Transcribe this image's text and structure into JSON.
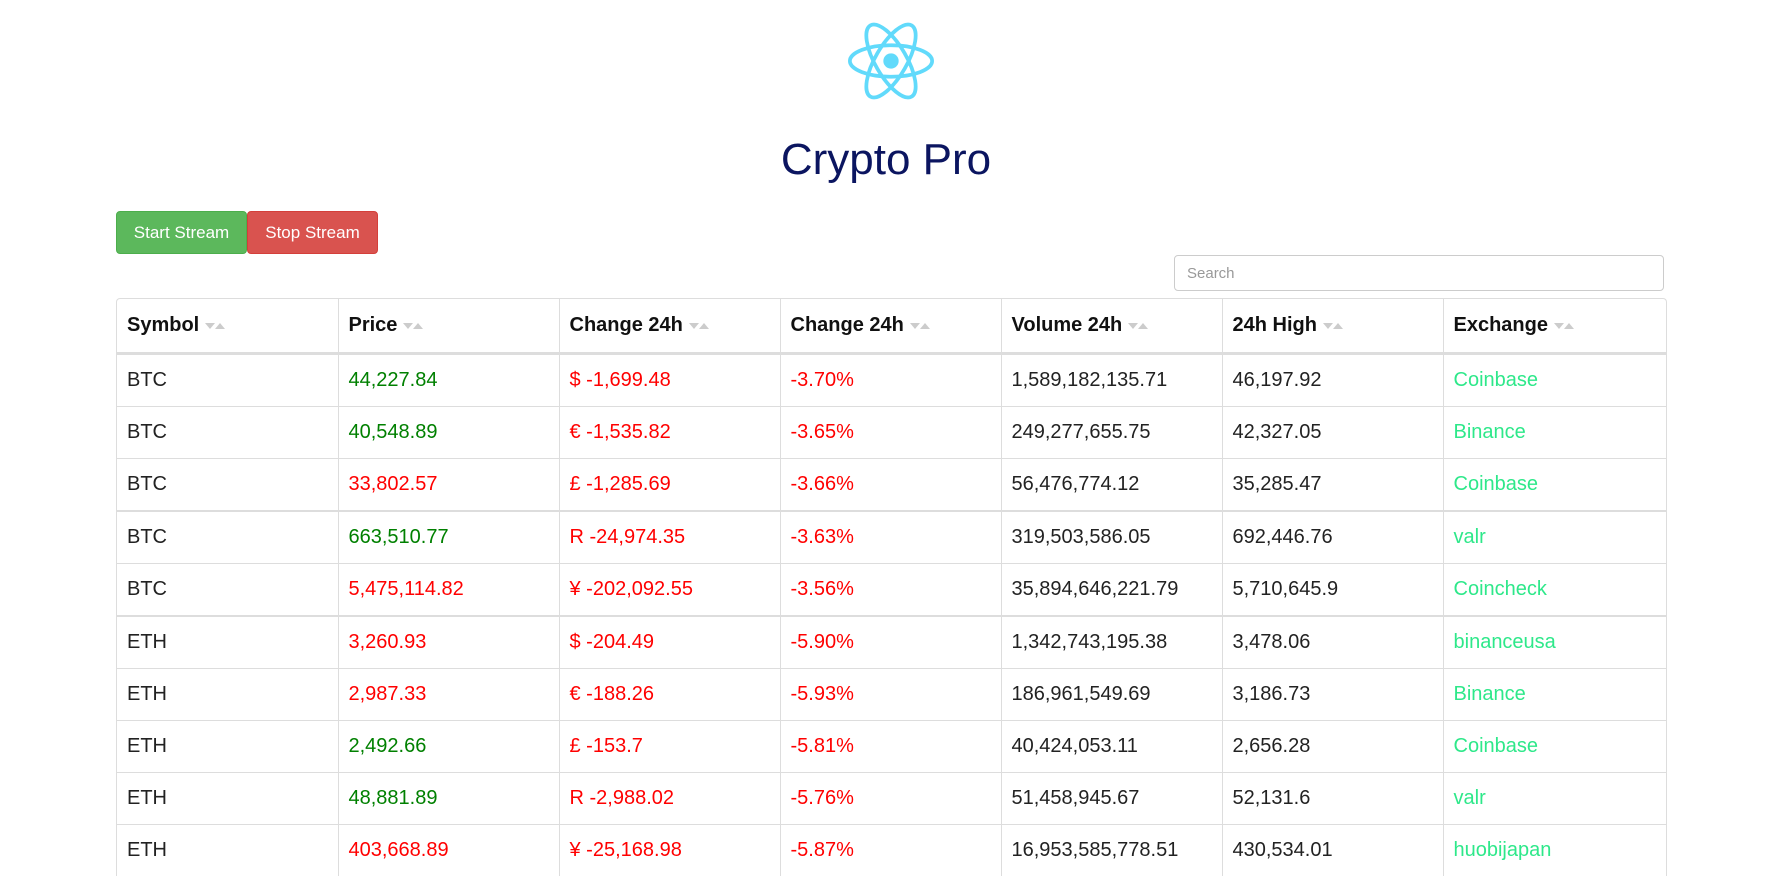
{
  "app": {
    "title": "Crypto Pro",
    "logo_icon": "react-atom-icon",
    "logo_color": "#61dafb"
  },
  "controls": {
    "start_label": "Start Stream",
    "stop_label": "Stop Stream",
    "search_placeholder": "Search"
  },
  "colors": {
    "up": "#008000",
    "down": "#ff0000",
    "exchange": "#2ee88a",
    "title": "#0b1560"
  },
  "table": {
    "columns": [
      "Symbol",
      "Price",
      "Change 24h",
      "Change 24h",
      "Volume 24h",
      "24h High",
      "Exchange"
    ],
    "rows": [
      {
        "symbol": "BTC",
        "price": "44,227.84",
        "price_dir": "up",
        "change": "$ -1,699.48",
        "change_pct": "-3.70%",
        "volume": "1,589,182,135.71",
        "high": "46,197.92",
        "exchange": "Coinbase"
      },
      {
        "symbol": "BTC",
        "price": "40,548.89",
        "price_dir": "up",
        "change": "€ -1,535.82",
        "change_pct": "-3.65%",
        "volume": "249,277,655.75",
        "high": "42,327.05",
        "exchange": "Binance"
      },
      {
        "symbol": "BTC",
        "price": "33,802.57",
        "price_dir": "down",
        "change": "£ -1,285.69",
        "change_pct": "-3.66%",
        "volume": "56,476,774.12",
        "high": "35,285.47",
        "exchange": "Coinbase"
      },
      {
        "symbol": "BTC",
        "price": "663,510.77",
        "price_dir": "up",
        "change": "R -24,974.35",
        "change_pct": "-3.63%",
        "volume": "319,503,586.05",
        "high": "692,446.76",
        "exchange": "valr"
      },
      {
        "symbol": "BTC",
        "price": "5,475,114.82",
        "price_dir": "down",
        "change": "¥ -202,092.55",
        "change_pct": "-3.56%",
        "volume": "35,894,646,221.79",
        "high": "5,710,645.9",
        "exchange": "Coincheck"
      },
      {
        "symbol": "ETH",
        "price": "3,260.93",
        "price_dir": "down",
        "change": "$ -204.49",
        "change_pct": "-5.90%",
        "volume": "1,342,743,195.38",
        "high": "3,478.06",
        "exchange": "binanceusa"
      },
      {
        "symbol": "ETH",
        "price": "2,987.33",
        "price_dir": "down",
        "change": "€ -188.26",
        "change_pct": "-5.93%",
        "volume": "186,961,549.69",
        "high": "3,186.73",
        "exchange": "Binance"
      },
      {
        "symbol": "ETH",
        "price": "2,492.66",
        "price_dir": "up",
        "change": "£ -153.7",
        "change_pct": "-5.81%",
        "volume": "40,424,053.11",
        "high": "2,656.28",
        "exchange": "Coinbase"
      },
      {
        "symbol": "ETH",
        "price": "48,881.89",
        "price_dir": "up",
        "change": "R -2,988.02",
        "change_pct": "-5.76%",
        "volume": "51,458,945.67",
        "high": "52,131.6",
        "exchange": "valr"
      },
      {
        "symbol": "ETH",
        "price": "403,668.89",
        "price_dir": "down",
        "change": "¥ -25,168.98",
        "change_pct": "-5.87%",
        "volume": "16,953,585,778.51",
        "high": "430,534.01",
        "exchange": "huobijapan"
      }
    ]
  }
}
